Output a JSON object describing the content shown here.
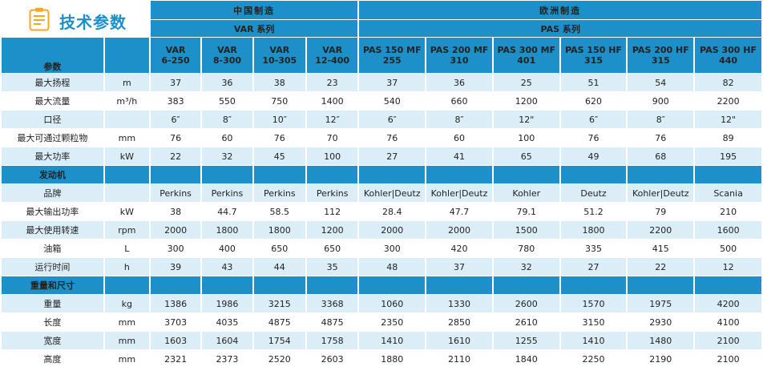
{
  "title": "技术参数",
  "regions": [
    "中国制造",
    "欧洲制造"
  ],
  "series": [
    "VAR 系列",
    "PAS 系列"
  ],
  "models": [
    [
      "VAR",
      "6-250"
    ],
    [
      "VAR",
      "8-300"
    ],
    [
      "VAR",
      "10-305"
    ],
    [
      "VAR",
      "12-400"
    ],
    [
      "PAS 150 MF",
      "255"
    ],
    [
      "PAS 200 MF",
      "310"
    ],
    [
      "PAS 300 MF",
      "401"
    ],
    [
      "PAS 150 HF",
      "315"
    ],
    [
      "PAS 200 HF",
      "315"
    ],
    [
      "PAS 300 HF",
      "440"
    ]
  ],
  "param_header": "参数",
  "sections": [
    {
      "name": "",
      "rows": [
        {
          "label": "最大扬程",
          "unit": "m",
          "values": [
            "37",
            "36",
            "38",
            "23",
            "37",
            "36",
            "25",
            "51",
            "54",
            "82"
          ]
        },
        {
          "label": "最大流量",
          "unit": "m³/h",
          "values": [
            "383",
            "550",
            "750",
            "1400",
            "540",
            "660",
            "1200",
            "620",
            "900",
            "2200"
          ]
        },
        {
          "label": "口径",
          "unit": "",
          "values": [
            "6″",
            "8″",
            "10″",
            "12″",
            "6″",
            "8″",
            "12\"",
            "6″",
            "8″",
            "12\""
          ]
        },
        {
          "label": "最大可通过颗粒物",
          "unit": "mm",
          "values": [
            "76",
            "60",
            "76",
            "70",
            "76",
            "60",
            "100",
            "76",
            "76",
            "89"
          ]
        },
        {
          "label": "最大功率",
          "unit": "kW",
          "values": [
            "22",
            "32",
            "45",
            "100",
            "27",
            "41",
            "65",
            "49",
            "68",
            "195"
          ]
        }
      ]
    },
    {
      "name": "发动机",
      "rows": [
        {
          "label": "品牌",
          "unit": "",
          "values": [
            "Perkins",
            "Perkins",
            "Perkins",
            "Perkins",
            "Kohler|Deutz",
            "Kohler|Deutz",
            "Kohler",
            "Deutz",
            "Kohler|Deutz",
            "Scania"
          ]
        },
        {
          "label": "最大输出功率",
          "unit": "kW",
          "values": [
            "38",
            "44.7",
            "58.5",
            "112",
            "28.4",
            "47.7",
            "79.1",
            "51.2",
            "79",
            "210"
          ]
        },
        {
          "label": "最大使用转速",
          "unit": "rpm",
          "values": [
            "2000",
            "1800",
            "1800",
            "1200",
            "2000",
            "2000",
            "1500",
            "1800",
            "2200",
            "1600"
          ]
        },
        {
          "label": "油箱",
          "unit": "L",
          "values": [
            "300",
            "400",
            "650",
            "650",
            "300",
            "420",
            "780",
            "335",
            "415",
            "500"
          ]
        },
        {
          "label": "运行时间",
          "unit": "h",
          "values": [
            "39",
            "43",
            "44",
            "35",
            "48",
            "37",
            "32",
            "27",
            "22",
            "12"
          ]
        }
      ]
    },
    {
      "name": "重量和尺寸",
      "rows": [
        {
          "label": "重量",
          "unit": "kg",
          "values": [
            "1386",
            "1986",
            "3215",
            "3368",
            "1060",
            "1330",
            "2600",
            "1570",
            "1975",
            "4200"
          ]
        },
        {
          "label": "长度",
          "unit": "mm",
          "values": [
            "3703",
            "4035",
            "4875",
            "4875",
            "2350",
            "2850",
            "2610",
            "3150",
            "2930",
            "4100"
          ]
        },
        {
          "label": "宽度",
          "unit": "mm",
          "values": [
            "1603",
            "1604",
            "1754",
            "1758",
            "1410",
            "1610",
            "1255",
            "1410",
            "1480",
            "2100"
          ]
        },
        {
          "label": "高度",
          "unit": "mm",
          "values": [
            "2321",
            "2373",
            "2520",
            "2603",
            "1880",
            "2110",
            "1840",
            "2250",
            "2190",
            "2100"
          ]
        }
      ]
    }
  ]
}
